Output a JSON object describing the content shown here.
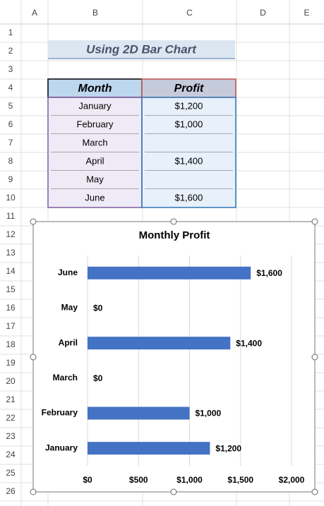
{
  "sheet": {
    "columns": [
      "A",
      "B",
      "C",
      "D",
      "E"
    ],
    "row_numbers": [
      1,
      2,
      3,
      4,
      5,
      6,
      7,
      8,
      9,
      10,
      11,
      12,
      13,
      14,
      15,
      16,
      17,
      18,
      19,
      20,
      21,
      22,
      23,
      24,
      25,
      26
    ],
    "title": "Using 2D Bar Chart",
    "table": {
      "header": [
        "Month",
        "Profit"
      ],
      "rows": [
        [
          "January",
          "$1,200"
        ],
        [
          "February",
          "$1,000"
        ],
        [
          "March",
          null
        ],
        [
          "April",
          "$1,400"
        ],
        [
          "May",
          null
        ],
        [
          "June",
          "$1,600"
        ]
      ]
    }
  },
  "chart_data": {
    "type": "bar",
    "orientation": "horizontal",
    "title": "Monthly Profit",
    "categories": [
      "January",
      "February",
      "March",
      "April",
      "May",
      "June"
    ],
    "values": [
      1200,
      1000,
      0,
      1400,
      0,
      1600
    ],
    "value_labels": [
      "$1,200",
      "$1,000",
      "$0",
      "$1,400",
      "$0",
      "$1,600"
    ],
    "color": "#4472c4",
    "xlim": [
      0,
      2000
    ],
    "xticks": [
      {
        "value": 0,
        "label": "$0"
      },
      {
        "value": 500,
        "label": "$500"
      },
      {
        "value": 1000,
        "label": "$1,000"
      },
      {
        "value": 1500,
        "label": "$1,500"
      },
      {
        "value": 2000,
        "label": "$2,000"
      }
    ],
    "grid": true
  }
}
